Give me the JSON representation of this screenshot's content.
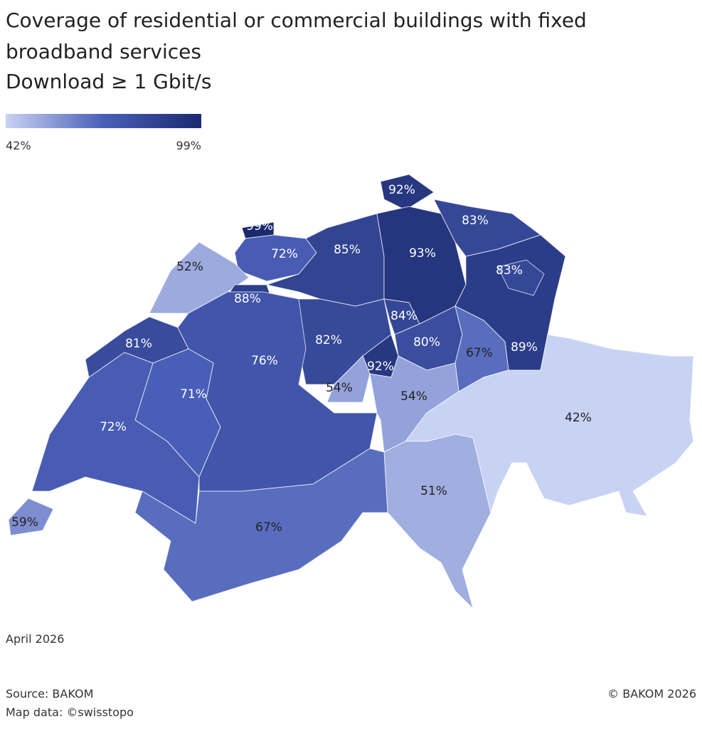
{
  "map": {
    "title": [
      "Coverage of residential or commercial buildings with fixed",
      "broadband services",
      "Download ≥ 1 Gbit/s"
    ],
    "legend": {
      "ticks": [
        {
          "value": 42,
          "label": "42%"
        },
        {
          "value": 99,
          "label": "99%"
        }
      ],
      "colors": [
        "#c8d2f3",
        "#4a5fb8",
        "#1b2a6e"
      ]
    },
    "regions": [
      {
        "value": 92,
        "label": "92%"
      },
      {
        "value": 99,
        "label": "99%"
      },
      {
        "value": 72,
        "label": "72%"
      },
      {
        "value": 85,
        "label": "85%"
      },
      {
        "value": 93,
        "label": "93%"
      },
      {
        "value": 83,
        "label": "83%"
      },
      {
        "value": 89,
        "label": "89%"
      },
      {
        "value": 83,
        "label": "83%"
      },
      {
        "value": 52,
        "label": "52%"
      },
      {
        "value": 88,
        "label": "88%"
      },
      {
        "value": 82,
        "label": "82%"
      },
      {
        "value": 84,
        "label": "84%"
      },
      {
        "value": 80,
        "label": "80%"
      },
      {
        "value": 67,
        "label": "67%"
      },
      {
        "value": 81,
        "label": "81%"
      },
      {
        "value": 76,
        "label": "76%"
      },
      {
        "value": 71,
        "label": "71%"
      },
      {
        "value": 92,
        "label": "92%"
      },
      {
        "value": 54,
        "label": "54%"
      },
      {
        "value": 54,
        "label": "54%"
      },
      {
        "value": 72,
        "label": "72%"
      },
      {
        "value": 42,
        "label": "42%"
      },
      {
        "value": 51,
        "label": "51%"
      },
      {
        "value": 67,
        "label": "67%"
      },
      {
        "value": 59,
        "label": "59%"
      }
    ],
    "date": "April 2026",
    "source": "Source: BAKOM",
    "map_data": "Map data: ©swisstopo",
    "copyright": "© BAKOM 2026"
  }
}
